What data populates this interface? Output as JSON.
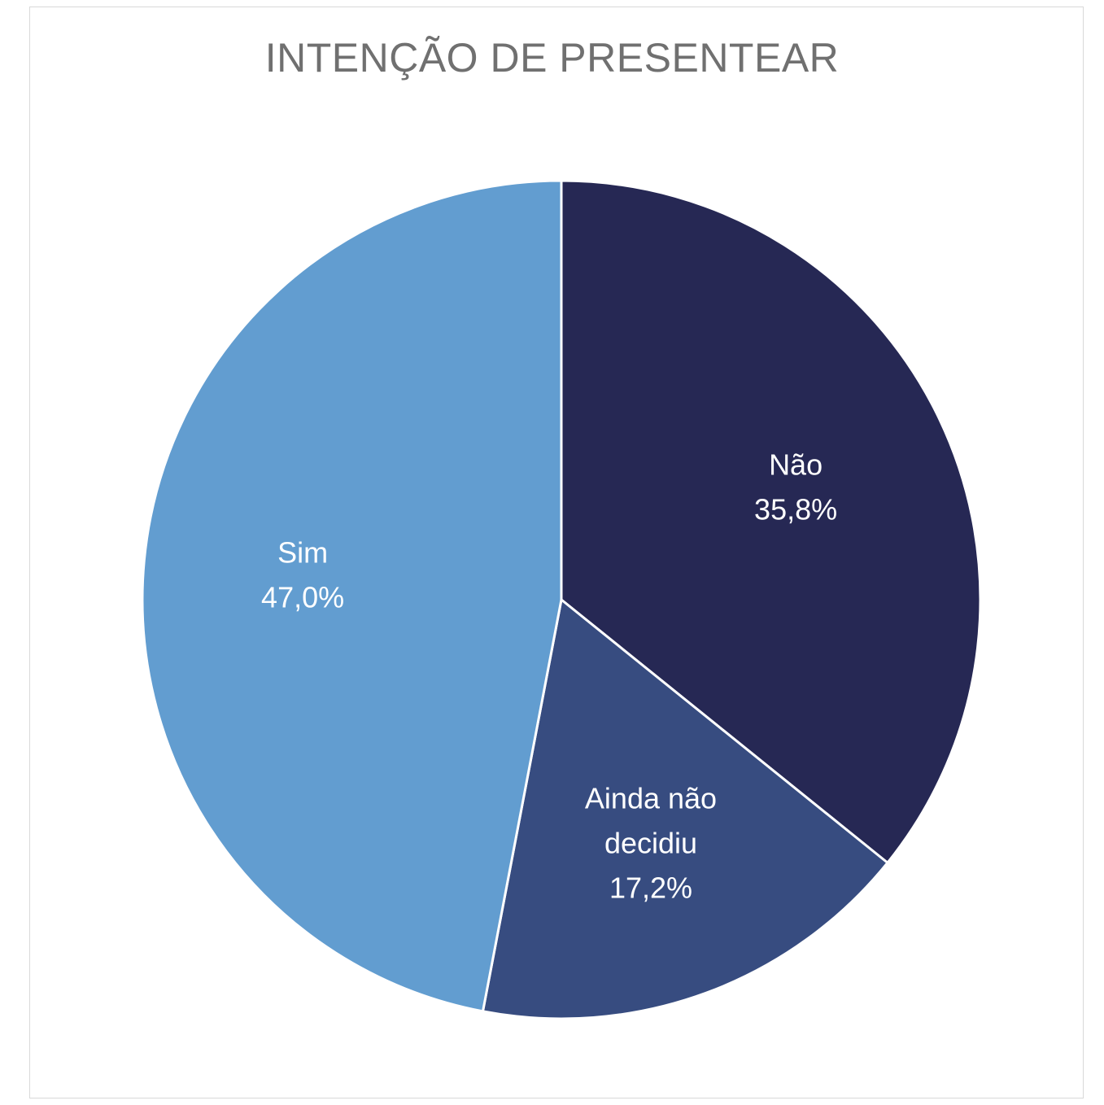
{
  "chart_data": {
    "type": "pie",
    "title": "INTENÇÃO DE PRESENTEAR",
    "slices": [
      {
        "label_lines": [
          "Não"
        ],
        "value": 35.8,
        "value_label": "35,8%",
        "color": "#262854"
      },
      {
        "label_lines": [
          "Ainda não",
          "decidiu"
        ],
        "value": 17.2,
        "value_label": "17,2%",
        "color": "#374C80"
      },
      {
        "label_lines": [
          "Sim"
        ],
        "value": 47.0,
        "value_label": "47,0%",
        "color": "#629DD0"
      }
    ],
    "start_direction": "12 o'clock",
    "direction": "clockwise",
    "legend": "none",
    "labels_position": "inside"
  }
}
